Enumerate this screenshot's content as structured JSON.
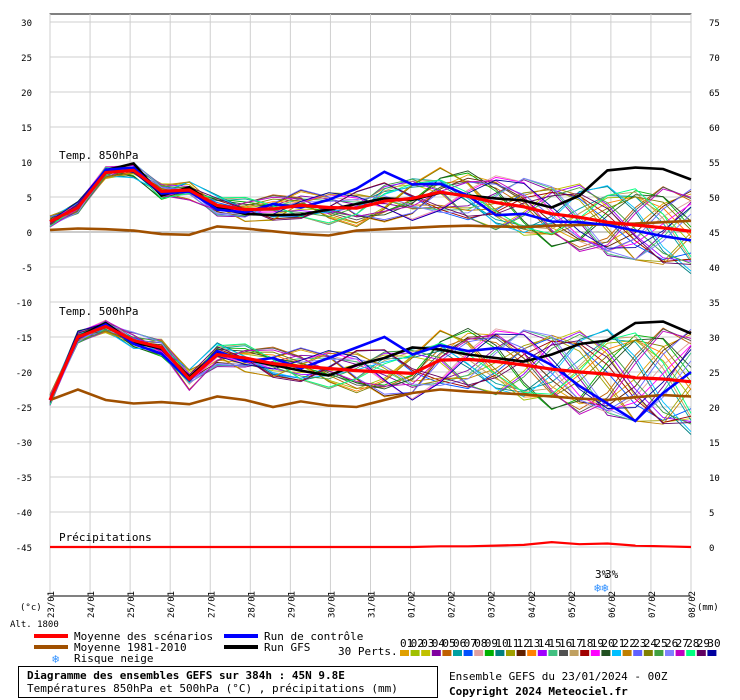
{
  "chart_data": {
    "type": "line",
    "panels": [
      {
        "label": "Temp. 850hPa",
        "ylim": [
          -45,
          30
        ]
      },
      {
        "label": "Temp. 500hPa"
      },
      {
        "label": "Précipitations"
      }
    ],
    "left_axis_ticks": [
      30,
      25,
      20,
      15,
      10,
      5,
      0,
      -5,
      -10,
      -15,
      -20,
      -25,
      -30,
      -35,
      -40,
      -45
    ],
    "right_axis_ticks": [
      75,
      70,
      65,
      60,
      55,
      50,
      45,
      40,
      35,
      30,
      25,
      20,
      15,
      10,
      5,
      0
    ],
    "left_unit": "(°c)",
    "right_unit": "(mm)",
    "alt_label": "Alt. 1800",
    "x_dates": [
      "23/01",
      "24/01",
      "25/01",
      "26/01",
      "27/01",
      "28/01",
      "29/01",
      "30/01",
      "31/01",
      "01/02",
      "02/02",
      "03/02",
      "04/02",
      "05/02",
      "06/02",
      "07/02",
      "08/02"
    ],
    "snow_marker_label": "3%",
    "series": [
      {
        "name": "Moyenne des scénarios",
        "color": "#ff0000",
        "t850": [
          1.5,
          3.5,
          8.5,
          8.8,
          5.8,
          6.0,
          3.8,
          3.2,
          3.3,
          3.8,
          3.5,
          3.4,
          4.4,
          4.8,
          5.7,
          5.1,
          4.2,
          3.6,
          2.6,
          2.1,
          1.4,
          1.0,
          0.6,
          0.1
        ],
        "t500": [
          -24.0,
          -15.0,
          -13.5,
          -15.5,
          -16.5,
          -21.0,
          -17.5,
          -18.0,
          -18.8,
          -19.2,
          -19.5,
          -19.8,
          -20.0,
          -20.2,
          -18.3,
          -18.2,
          -18.5,
          -19.0,
          -19.6,
          -20.0,
          -20.3,
          -20.8,
          -21.0,
          -21.4
        ],
        "precip": [
          0,
          0,
          0,
          0,
          0,
          0,
          0,
          0,
          0,
          0,
          0,
          0,
          0,
          0,
          0.1,
          0.1,
          0.2,
          0.3,
          0.7,
          0.4,
          0.5,
          0.2,
          0.1,
          0
        ]
      },
      {
        "name": "Moyenne 1981-2010",
        "color": "#a05000",
        "t850": [
          0.3,
          0.5,
          0.4,
          0.2,
          -0.3,
          -0.4,
          0.8,
          0.5,
          0.1,
          -0.3,
          -0.5,
          0.2,
          0.4,
          0.6,
          0.8,
          0.9,
          0.8,
          0.7,
          0.9,
          1.0,
          1.1,
          1.2,
          1.4,
          1.6
        ],
        "t500": [
          -24.0,
          -22.5,
          -24.0,
          -24.5,
          -24.3,
          -24.6,
          -23.5,
          -24.0,
          -25.0,
          -24.2,
          -24.8,
          -25.0,
          -24.0,
          -23.0,
          -22.5,
          -22.8,
          -23.0,
          -23.2,
          -23.5,
          -23.8,
          -24.0,
          -23.6,
          -23.3,
          -23.5
        ]
      },
      {
        "name": "Run de contrôle",
        "color": "#0000ff",
        "t850": [
          1.5,
          3.6,
          8.9,
          9.2,
          5.5,
          5.8,
          3.2,
          2.8,
          4.0,
          3.5,
          4.6,
          6.2,
          8.6,
          6.8,
          6.9,
          5.2,
          2.4,
          2.6,
          1.5,
          1.4,
          1.0,
          0.2,
          -0.6,
          -1.2
        ],
        "t500": [
          -24.0,
          -15.2,
          -13.2,
          -16.0,
          -17.4,
          -21.2,
          -17.0,
          -18.5,
          -18.0,
          -19.5,
          -18.0,
          -16.5,
          -15.0,
          -17.5,
          -16.2,
          -17.0,
          -16.6,
          -17.0,
          -19.0,
          -22.0,
          -24.5,
          -27.0,
          -23.0,
          -20.0
        ]
      },
      {
        "name": "Run GFS",
        "color": "#000000",
        "t850": [
          1.5,
          3.5,
          8.8,
          9.8,
          5.2,
          6.4,
          3.5,
          2.6,
          2.4,
          2.5,
          3.2,
          4.0,
          4.8,
          4.6,
          5.6,
          5.2,
          4.8,
          4.5,
          3.5,
          5.2,
          8.8,
          9.2,
          9.0,
          7.5
        ],
        "t500": [
          -24.0,
          -15.0,
          -13.0,
          -15.8,
          -16.6,
          -20.8,
          -17.2,
          -18.2,
          -19.0,
          -19.8,
          -20.5,
          -19.0,
          -18.0,
          -16.5,
          -16.8,
          -17.5,
          -18.0,
          -18.5,
          -17.5,
          -16.0,
          -15.5,
          -13.0,
          -12.8,
          -14.5
        ]
      }
    ],
    "perturbations_label": "30 Perts.",
    "perturbation_colors": [
      "#e0a000",
      "#a0c000",
      "#c0c000",
      "#8000a0",
      "#c06000",
      "#00a0a0",
      "#0050ff",
      "#e0a0a0",
      "#00b000",
      "#008080",
      "#a0a000",
      "#602000",
      "#ff8000",
      "#a000ff",
      "#40c080",
      "#505050",
      "#c0a060",
      "#a00000",
      "#ff00ff",
      "#205020",
      "#00c0ff",
      "#c08000",
      "#6060ff",
      "#808000",
      "#40a040",
      "#8080ff",
      "#c000c0",
      "#00ff80",
      "#600060",
      "#0000a0"
    ],
    "perturbation_numbers": [
      "01",
      "02",
      "03",
      "04",
      "05",
      "06",
      "07",
      "08",
      "09",
      "10",
      "11",
      "12",
      "13",
      "14",
      "15",
      "16",
      "17",
      "18",
      "19",
      "20",
      "21",
      "22",
      "23",
      "24",
      "25",
      "26",
      "27",
      "28",
      "29",
      "30"
    ],
    "legend_snow": "Risque neige",
    "grid": true
  },
  "footer": {
    "title": "Diagramme des ensembles GEFS sur 384h : 45N 9.8E",
    "subtitle": "Températures 850hPa et 500hPa (°C) , précipitations (mm)",
    "run_info": "Ensemble GEFS du 23/01/2024 - 00Z",
    "copyright": "Copyright 2024 Meteociel.fr"
  }
}
